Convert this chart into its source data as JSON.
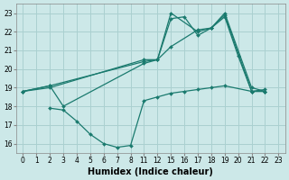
{
  "bg_color": "#cce8e8",
  "grid_color": "#aad0d0",
  "line_color": "#1a7a6e",
  "xlabel": "Humidex (Indice chaleur)",
  "tick_labels": [
    "0",
    "1",
    "2",
    "3",
    "4",
    "5",
    "6",
    "7",
    "8",
    "11",
    "12",
    "15",
    "16",
    "17",
    "18",
    "19",
    "20",
    "21",
    "22",
    "23"
  ],
  "ylim": [
    15.5,
    23.5
  ],
  "yticks": [
    16,
    17,
    18,
    19,
    20,
    21,
    22,
    23
  ],
  "series": [
    {
      "hx": [
        0,
        2,
        11,
        12,
        15,
        17,
        18,
        19,
        21,
        22
      ],
      "y": [
        18.8,
        19.0,
        20.5,
        20.5,
        23.0,
        22.0,
        22.2,
        23.0,
        19.0,
        18.8
      ]
    },
    {
      "hx": [
        0,
        2,
        11,
        12,
        15,
        16,
        17,
        18,
        19,
        21,
        22
      ],
      "y": [
        18.8,
        19.1,
        20.4,
        20.5,
        22.7,
        22.8,
        21.8,
        22.2,
        22.9,
        18.8,
        18.8
      ]
    },
    {
      "hx": [
        0,
        2,
        3,
        11,
        12,
        15,
        17,
        18,
        19,
        20,
        21,
        22
      ],
      "y": [
        18.8,
        19.1,
        18.0,
        20.3,
        20.5,
        21.2,
        22.1,
        22.2,
        22.8,
        20.7,
        18.8,
        18.8
      ]
    },
    {
      "hx": [
        2,
        3,
        4,
        5,
        6,
        7,
        8,
        11,
        12,
        15,
        16,
        17,
        18,
        19,
        21,
        22
      ],
      "y": [
        17.9,
        17.8,
        17.2,
        16.5,
        16.0,
        15.8,
        15.9,
        18.3,
        18.5,
        18.7,
        18.8,
        18.9,
        19.0,
        19.1,
        18.8,
        18.9
      ]
    }
  ]
}
